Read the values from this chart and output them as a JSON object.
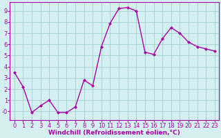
{
  "x": [
    0,
    1,
    2,
    3,
    4,
    5,
    6,
    7,
    8,
    9,
    10,
    11,
    12,
    13,
    14,
    15,
    16,
    17,
    18,
    19,
    20,
    21,
    22,
    23
  ],
  "y": [
    3.5,
    2.2,
    -0.1,
    0.5,
    1.0,
    -0.1,
    -0.1,
    0.4,
    2.8,
    2.3,
    5.8,
    7.9,
    9.2,
    9.3,
    9.0,
    5.3,
    5.1,
    6.5,
    7.5,
    7.0,
    6.2,
    5.8,
    5.6,
    5.4
  ],
  "line_color": "#aa00aa",
  "marker": "D",
  "marker_size": 2,
  "bg_color": "#d4f0f0",
  "grid_color": "#a0d0d0",
  "xlabel": "Windchill (Refroidissement éolien,°C)",
  "xlabel_color": "#aa00aa",
  "tick_color": "#aa00aa",
  "axis_color": "#aa00aa",
  "ylim": [
    -0.8,
    9.8
  ],
  "xlim": [
    -0.5,
    23.5
  ],
  "yticks": [
    0,
    1,
    2,
    3,
    4,
    5,
    6,
    7,
    8,
    9
  ],
  "ytick_labels": [
    "-0",
    "1",
    "2",
    "3",
    "4",
    "5",
    "6",
    "7",
    "8",
    "9"
  ],
  "xticks": [
    0,
    1,
    2,
    3,
    4,
    5,
    6,
    7,
    8,
    9,
    10,
    11,
    12,
    13,
    14,
    15,
    16,
    17,
    18,
    19,
    20,
    21,
    22,
    23
  ],
  "xlabel_fontsize": 6.5,
  "tick_fontsize": 6.0,
  "linewidth": 1.0
}
